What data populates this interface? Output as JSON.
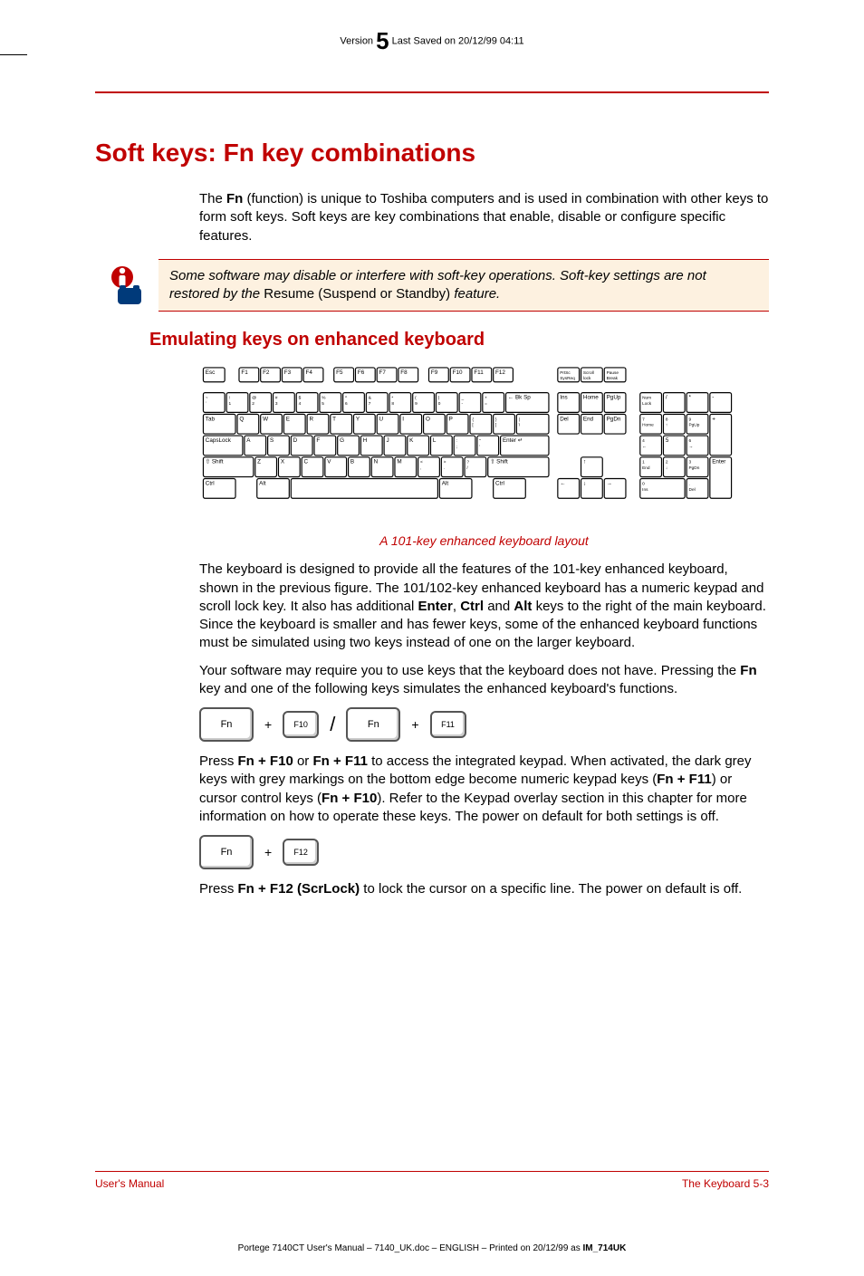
{
  "header": {
    "version_label": "Version",
    "version_number": "5",
    "saved_label": "Last Saved on 20/12/99 04:11"
  },
  "title": "Soft keys: Fn key combinations",
  "intro": {
    "p1_a": "The ",
    "p1_fn": "Fn",
    "p1_b": " (function) is unique to Toshiba computers and is used in combination with other keys to form soft keys. Soft keys are key combinations that enable, disable or configure specific features."
  },
  "note": {
    "text_a": "Some software may disable or interfere with soft-key operations. Soft-key settings are not restored by the ",
    "text_upright": "Resume (Suspend or Standby)",
    "text_b": " feature."
  },
  "section2": {
    "heading": "Emulating keys on enhanced keyboard",
    "caption": "A 101-key enhanced keyboard layout",
    "p1_a": "The keyboard is designed to provide all the features of the 101-key enhanced keyboard, shown in the previous figure. The 101/102-key enhanced keyboard has a numeric keypad and scroll lock key. It also has additional ",
    "p1_enter": "Enter",
    "p1_mid1": ", ",
    "p1_ctrl": "Ctrl",
    "p1_mid2": " and ",
    "p1_alt": "Alt",
    "p1_b": " keys to the right of the main keyboard. Since the keyboard is smaller and has fewer keys, some of the enhanced keyboard functions must be simulated using two keys instead of one on the larger keyboard.",
    "p2_a": "Your software may require you to use keys that the keyboard does not have. Pressing the ",
    "p2_fn": "Fn",
    "p2_b": " key and one of the following keys simulates the enhanced keyboard's functions.",
    "p3_a": "Press ",
    "p3_c1": "Fn + F10",
    "p3_mid1": " or ",
    "p3_c2": "Fn + F11",
    "p3_b": " to access the integrated keypad. When activated, the dark grey keys with grey markings on the bottom edge become numeric keypad keys (",
    "p3_c3": "Fn + F11",
    "p3_mid2": ") or cursor control keys (",
    "p3_c4": "Fn + F10",
    "p3_c": "). Refer to the Keypad overlay section in this chapter for more information on how to operate these keys. The power on default for both settings is off.",
    "p4_a": "Press ",
    "p4_c1": "Fn + F12 (ScrLock)",
    "p4_b": " to lock the cursor on a specific line. The power on default is off."
  },
  "keys": {
    "fn": "Fn",
    "f10": "F10",
    "f11": "F11",
    "f12": "F12",
    "plus": "+",
    "slash": "/"
  },
  "keyboard": {
    "row_fn": [
      "Esc",
      "F1",
      "F2",
      "F3",
      "F4",
      "F5",
      "F6",
      "F7",
      "F8",
      "F9",
      "F10",
      "F11",
      "F12"
    ],
    "row1": [
      "~\n`",
      "!\n1",
      "@\n2",
      "#\n3",
      "$\n4",
      "%\n5",
      "^\n6",
      "&\n7",
      "*\n8",
      "(\n9",
      ")\n0",
      "_\n-",
      "+\n=",
      "←  Bk Sp"
    ],
    "row2": [
      "Tab",
      "Q",
      "W",
      "E",
      "R",
      "T",
      "Y",
      "U",
      "I",
      "O",
      "P",
      "{\n[",
      "}\n]",
      "|\n\\"
    ],
    "row3": [
      "CapsLock",
      "A",
      "S",
      "D",
      "F",
      "G",
      "H",
      "J",
      "K",
      "L",
      ":\n;",
      "\"\n'",
      "Enter  ↵"
    ],
    "row4": [
      "⇧ Shift",
      "Z",
      "X",
      "C",
      "V",
      "B",
      "N",
      "M",
      "<\n,",
      ">\n.",
      "?\n/",
      "⇧ Shift"
    ],
    "row5": [
      "Ctrl",
      "Alt",
      "",
      "Alt",
      "Ctrl"
    ],
    "nav_top": [
      "PrtSc\nSysReq",
      "Scroll\nlock",
      "Pause\nBreak"
    ],
    "nav1": [
      "Ins",
      "Home",
      "PgUp"
    ],
    "nav2": [
      "Del",
      "End",
      "PgDn"
    ],
    "arrows": [
      "↑",
      "←",
      "↓",
      "→"
    ],
    "num_top": [
      "Num\nLock",
      "/",
      "*",
      "-"
    ],
    "num1": [
      "7\nHome",
      "8\n↑",
      "9\nPgUp"
    ],
    "num2": [
      "4\n←",
      "5",
      "6\n→"
    ],
    "num3": [
      "1\nEnd",
      "2\n↓",
      "3\nPgDn"
    ],
    "num_bottom": [
      "0\nIns",
      ".\nDel"
    ],
    "num_plus": "+",
    "num_enter": "Enter"
  },
  "footer": {
    "left": "User's Manual",
    "right": "The Keyboard  5-3"
  },
  "printline_a": "Portege 7140CT User's Manual  – 7140_UK.doc – ENGLISH – Printed on 20/12/99 as ",
  "printline_b": "IM_714UK"
}
